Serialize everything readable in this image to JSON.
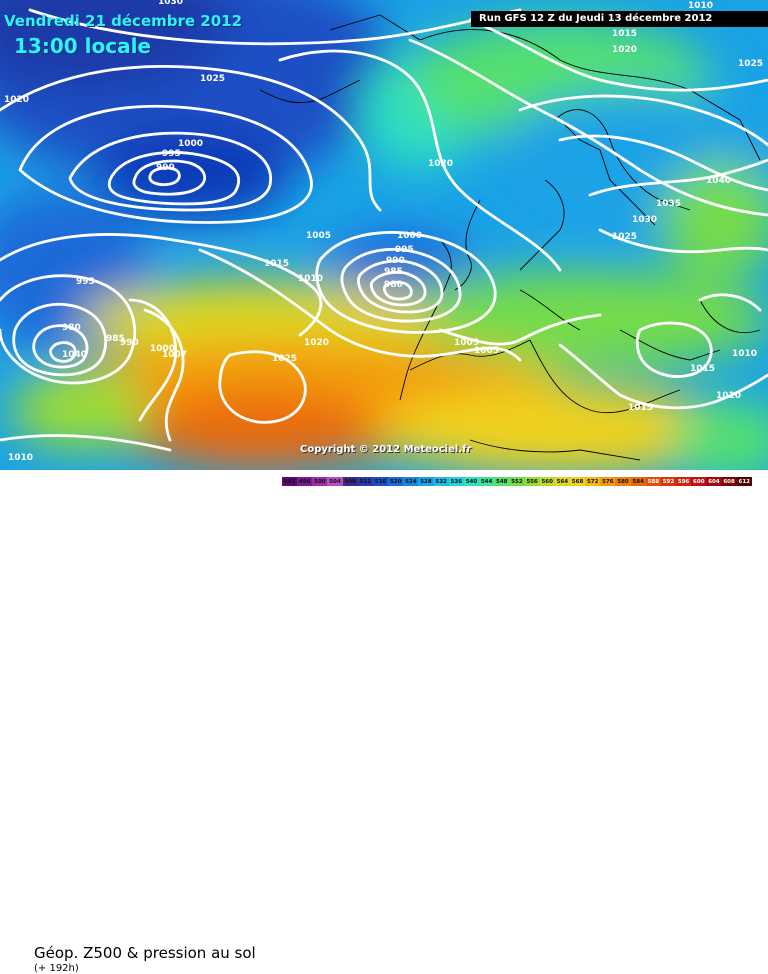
{
  "header": {
    "date": "Vendredi 21 décembre 2012",
    "time": "13:00 locale",
    "run": "Run GFS 12 Z du Jeudi 13 décembre 2012"
  },
  "copyright": "Copyright © 2012 Meteociel.fr",
  "footer": {
    "product": "Géop. Z500 & pression au sol",
    "lead": "(+ 192h)"
  },
  "colors": {
    "low": "#0a3fbf",
    "mid": "#22d6d1",
    "green": "#63d63b",
    "yellow": "#f0d21b",
    "orange": "#f08a0a",
    "isobar": "#ffffff"
  },
  "isobar_labels": {
    "l1030": "1030",
    "l1020_top": "1020",
    "l1025_a": "1025",
    "l1020_left": "1020",
    "l1015_top": "1015",
    "l1010_top": "1010",
    "l1025_right": "1025",
    "l1000": "1000",
    "l995_a": "995",
    "l990_a": "990",
    "l1020_mid": "1020",
    "l1040_r": "1040",
    "l1035": "1035",
    "l1030_r": "1030",
    "l1025_r2": "1025",
    "l1005_a": "1005",
    "l1015_c": "1015",
    "l1010_c": "1010",
    "l1000_b": "1000",
    "l995_b": "995",
    "l990_b": "990",
    "l985": "985",
    "l980_b": "980",
    "l995_c": "995",
    "l980_c": "980",
    "l985_c": "985",
    "l990_c": "990",
    "l1040_c": "1040",
    "l1000_d": "1000",
    "l1007": "1007",
    "l1020_s": "1020",
    "l1025_s": "1025",
    "l1005_b": "1005",
    "l1005_c": "1005",
    "l1010_e": "1010",
    "l1015_e": "1015",
    "l1015_f": "1015",
    "l1010_f": "1010",
    "l1010_g": "1010"
  },
  "scale": {
    "labels": [
      "492",
      "496",
      "500",
      "504",
      "508",
      "512",
      "516",
      "520",
      "524",
      "528",
      "532",
      "536",
      "540",
      "544",
      "548",
      "552",
      "556",
      "560",
      "564",
      "568",
      "572",
      "576",
      "580",
      "584",
      "588",
      "592",
      "596",
      "600",
      "604",
      "608",
      "612"
    ],
    "colors": [
      "#5a0a6e",
      "#7a1a8c",
      "#9b2ea8",
      "#b54ec0",
      "#3a2a8c",
      "#2a3aa8",
      "#1f4fc4",
      "#1a6ad8",
      "#1a86e0",
      "#1aa2e6",
      "#1fbce6",
      "#22d2dc",
      "#2ee0c0",
      "#3ee29a",
      "#55e070",
      "#74dc4c",
      "#98dc38",
      "#bcdc2c",
      "#dcd822",
      "#f0d21b",
      "#f4b812",
      "#f49c0c",
      "#f0820a",
      "#ea6a0a",
      "#e2500c",
      "#d8380e",
      "#cc2410",
      "#bc1412",
      "#a00a0e",
      "#7a060a",
      "#4a0206"
    ]
  }
}
